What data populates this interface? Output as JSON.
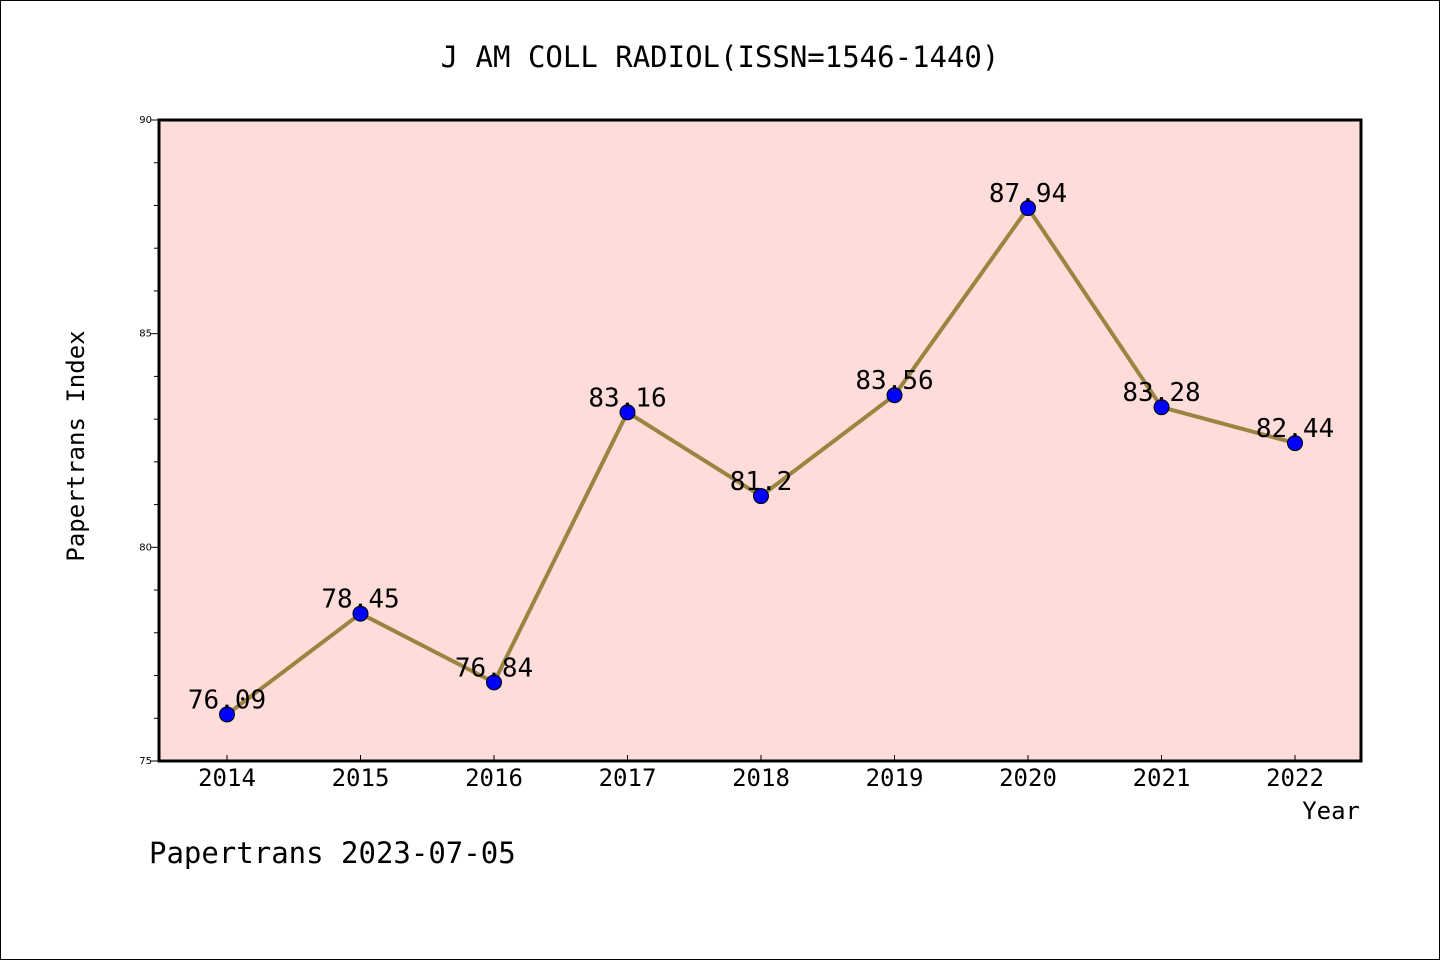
{
  "chart_data": {
    "type": "line",
    "title": "J AM COLL RADIOL(ISSN=1546-1440)",
    "xlabel": "Year",
    "ylabel": "Papertrans Index",
    "categories": [
      "2014",
      "2015",
      "2016",
      "2017",
      "2018",
      "2019",
      "2020",
      "2021",
      "2022"
    ],
    "series": [
      {
        "values": [
          76.09,
          78.45,
          76.84,
          83.16,
          81.2,
          83.56,
          87.94,
          83.28,
          82.44
        ],
        "data_labels": [
          "76.09",
          "78.45",
          "76.84",
          "83.16",
          "81.2",
          "83.56",
          "87.94",
          "83.28",
          "82.44"
        ]
      }
    ],
    "ylim": [
      75,
      90
    ],
    "yticks": [
      75,
      80,
      85,
      90
    ],
    "ytick_labels": [
      "75",
      "80",
      "85",
      "90"
    ],
    "grid": false,
    "colors": {
      "plot_background": "#fddcd9",
      "line": "#9a8440",
      "marker": "#0000ff"
    }
  },
  "footer": {
    "text": "Papertrans 2023-07-05"
  }
}
